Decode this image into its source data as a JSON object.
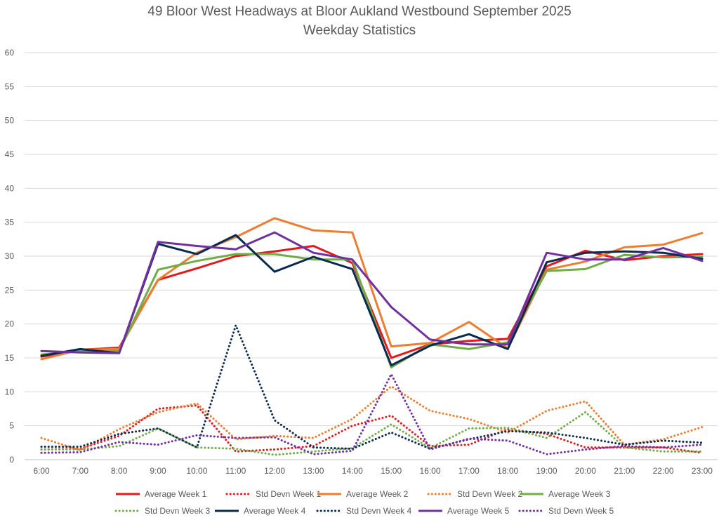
{
  "chart_data": {
    "type": "line",
    "title": "49 Bloor West Headways at Bloor Aukland Westbound September 2025",
    "subtitle": "Weekday Statistics",
    "xlabel": "",
    "ylabel": "",
    "ylim": [
      0,
      60
    ],
    "yticks": [
      0,
      5,
      10,
      15,
      20,
      25,
      30,
      35,
      40,
      45,
      50,
      55,
      60
    ],
    "grid": true,
    "legend_position": "bottom",
    "categories": [
      "6:00",
      "7:00",
      "8:00",
      "9:00",
      "10:00",
      "11:00",
      "12:00",
      "13:00",
      "14:00",
      "15:00",
      "16:00",
      "17:00",
      "18:00",
      "19:00",
      "20:00",
      "21:00",
      "22:00",
      "23:00"
    ],
    "series": [
      {
        "name": "Average Week 1",
        "color": "#e31a1c",
        "style": "solid",
        "values": [
          15.2,
          16.2,
          16.5,
          26.5,
          28.2,
          30.0,
          30.7,
          31.5,
          29.0,
          15.0,
          17.0,
          17.5,
          17.8,
          28.5,
          30.8,
          29.4,
          30.0,
          30.3
        ]
      },
      {
        "name": "Std Devn Week 1",
        "color": "#e31a1c",
        "style": "dotted",
        "values": [
          1.5,
          1.6,
          3.5,
          7.5,
          8.0,
          1.2,
          1.5,
          2.0,
          5.0,
          6.5,
          2.0,
          2.2,
          4.5,
          3.8,
          1.8,
          1.8,
          1.8,
          1.0
        ]
      },
      {
        "name": "Average Week 2",
        "color": "#ed7d31",
        "style": "solid",
        "values": [
          14.8,
          16.2,
          16.3,
          26.5,
          30.5,
          32.8,
          35.6,
          33.8,
          33.5,
          16.7,
          17.2,
          20.3,
          16.4,
          28.0,
          29.2,
          31.3,
          31.7,
          33.4
        ]
      },
      {
        "name": "Std Devn Week 2",
        "color": "#ed7d31",
        "style": "dotted",
        "values": [
          3.2,
          1.4,
          4.5,
          7.0,
          8.3,
          3.0,
          3.5,
          3.2,
          6.0,
          10.8,
          7.2,
          6.0,
          4.0,
          7.2,
          8.6,
          2.2,
          3.0,
          4.8
        ]
      },
      {
        "name": "Average Week 3",
        "color": "#70ad47",
        "style": "solid",
        "values": [
          15.5,
          16.0,
          16.0,
          28.0,
          29.3,
          30.3,
          30.3,
          29.5,
          29.5,
          13.6,
          17.0,
          16.3,
          17.3,
          27.8,
          28.1,
          30.2,
          29.8,
          29.9
        ]
      },
      {
        "name": "Std Devn Week 3",
        "color": "#70ad47",
        "style": "dotted",
        "values": [
          1.5,
          1.5,
          2.0,
          4.6,
          1.8,
          1.6,
          0.7,
          1.2,
          1.7,
          5.2,
          1.7,
          4.6,
          4.7,
          3.2,
          7.0,
          1.8,
          1.2,
          1.2
        ]
      },
      {
        "name": "Average Week 4",
        "color": "#0b2a52",
        "style": "solid",
        "values": [
          15.3,
          16.3,
          15.7,
          31.8,
          30.3,
          33.1,
          27.7,
          29.9,
          28.1,
          13.9,
          16.8,
          18.5,
          16.3,
          29.1,
          30.5,
          30.7,
          30.5,
          29.6
        ]
      },
      {
        "name": "Std Devn Week 4",
        "color": "#0b2a52",
        "style": "dotted",
        "values": [
          1.9,
          1.9,
          3.8,
          4.6,
          1.8,
          19.8,
          5.8,
          1.8,
          1.6,
          4.0,
          1.6,
          3.0,
          4.2,
          4.0,
          3.2,
          2.2,
          2.8,
          2.5
        ]
      },
      {
        "name": "Average Week 5",
        "color": "#7030a0",
        "style": "solid",
        "values": [
          16.0,
          15.8,
          15.7,
          32.1,
          31.5,
          31.0,
          33.5,
          30.5,
          29.5,
          22.5,
          17.7,
          17.0,
          17.0,
          30.5,
          29.5,
          29.5,
          31.2,
          29.3
        ]
      },
      {
        "name": "Std Devn Week 5",
        "color": "#7030a0",
        "style": "dotted",
        "values": [
          1.0,
          1.1,
          2.6,
          2.2,
          3.6,
          3.2,
          3.3,
          0.8,
          1.3,
          12.6,
          1.5,
          3.1,
          2.8,
          0.8,
          1.5,
          2.0,
          1.8,
          2.2
        ]
      }
    ]
  }
}
